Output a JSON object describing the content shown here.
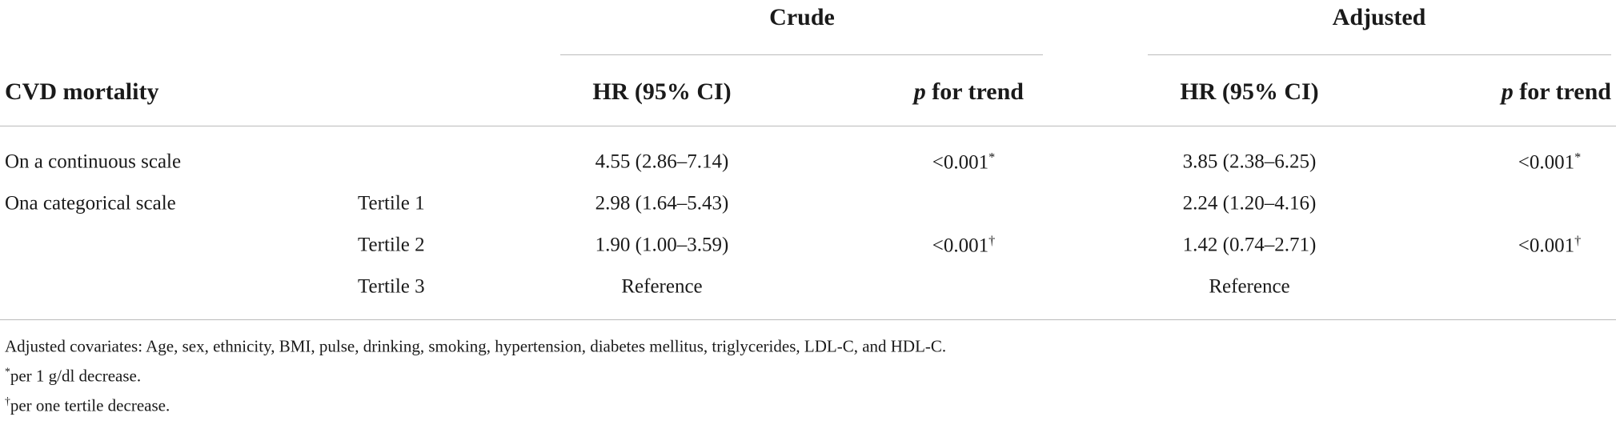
{
  "table": {
    "groups": [
      "Crude",
      "Adjusted"
    ],
    "header": {
      "label": "CVD mortality",
      "hr": "HR (95% CI)",
      "p_italic": "p",
      "p_rest": "for trend"
    },
    "rows": [
      {
        "label": "On a continuous scale",
        "crude_hr": "4.55 (2.86–7.14)",
        "crude_p": {
          "text": "<0.001",
          "mark": "*"
        },
        "adj_hr": "3.85 (2.38–6.25)",
        "adj_p": {
          "text": "<0.001",
          "mark": "*"
        }
      },
      {
        "label": "Ona categorical scale",
        "sub": "Tertile 1",
        "crude_hr": "2.98 (1.64–5.43)",
        "adj_hr": "2.24 (1.20–4.16)"
      },
      {
        "sub": "Tertile 2",
        "crude_hr": "1.90 (1.00–3.59)",
        "crude_p": {
          "text": "<0.001",
          "mark": "†"
        },
        "adj_hr": "1.42 (0.74–2.71)",
        "adj_p": {
          "text": "<0.001",
          "mark": "†"
        }
      },
      {
        "sub": "Tertile 3",
        "crude_hr": "Reference",
        "adj_hr": "Reference"
      }
    ],
    "footnotes": [
      {
        "text": "Adjusted covariates: Age, sex, ethnicity, BMI, pulse, drinking, smoking, hypertension, diabetes mellitus, triglycerides, LDL-C, and HDL-C."
      },
      {
        "mark": "*",
        "text": "per 1 g/dl decrease."
      },
      {
        "mark": "†",
        "text": "per one tertile decrease."
      }
    ]
  }
}
